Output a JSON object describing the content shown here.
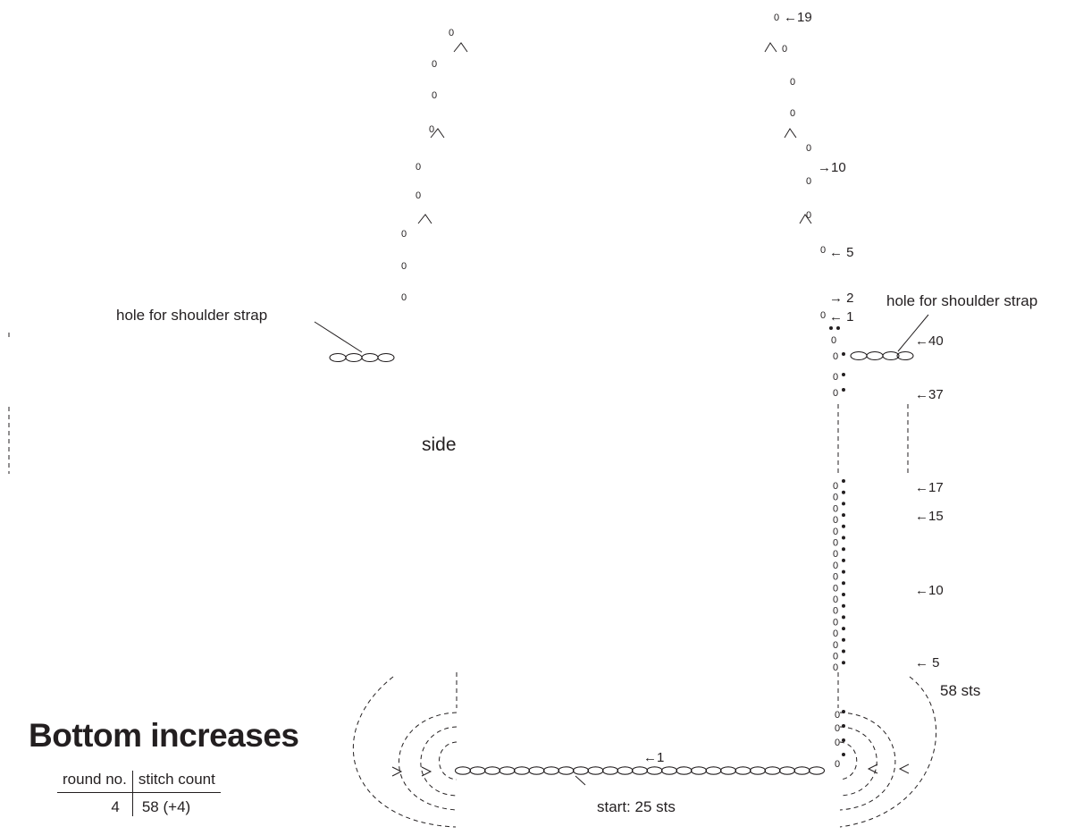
{
  "labels": {
    "hole_left": "hole for shoulder strap",
    "hole_right": "hole for shoulder strap",
    "side": "side",
    "sts58": "58 sts",
    "start": "start: 25 sts"
  },
  "strap_rows": {
    "r19": "←19",
    "r10": "→10",
    "r5": "← 5",
    "r2": "→ 2",
    "r1": "← 1"
  },
  "body_rows": {
    "r40": "←40",
    "r37": "←37",
    "r17": "←17",
    "r15": "←15",
    "r10": "←10",
    "r5": "← 5"
  },
  "bottom_rows": {
    "r1": "←1"
  },
  "legend": {
    "title": "Bottom increases",
    "col_round": "round no.",
    "col_count": "stitch count",
    "rows": [
      {
        "round": "4",
        "count": "58 (+4)"
      }
    ]
  }
}
